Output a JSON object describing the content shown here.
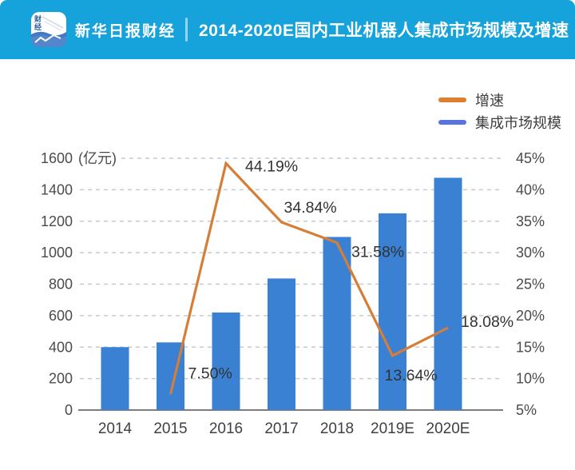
{
  "header": {
    "brand": "新华日报财经",
    "title": "2014-2020E国内工业机器人集成市场规模及增速",
    "bg_color": "#16A3DB",
    "logo_char_top": "财",
    "logo_char_bottom": "经"
  },
  "legend": {
    "items": [
      {
        "label": "增速",
        "color": "#DD7E2E",
        "marker": "line"
      },
      {
        "label": "集成市场规模",
        "color": "#5B74DB",
        "marker": "line"
      }
    ]
  },
  "chart_data": {
    "type": "bar+line",
    "title": "2014-2020E国内工业机器人集成市场规模及增速",
    "categories": [
      "2014",
      "2015",
      "2016",
      "2017",
      "2018",
      "2019E",
      "2020E"
    ],
    "series": [
      {
        "name": "集成市场规模",
        "type": "bar",
        "axis": "left",
        "unit": "亿元",
        "color": "#3A81D4",
        "values": [
          400,
          430,
          620,
          836,
          1100,
          1250,
          1476
        ],
        "estimated_from_gridlines": true
      },
      {
        "name": "增速",
        "type": "line",
        "axis": "right",
        "unit": "%",
        "color": "#D47E38",
        "values": [
          null,
          7.5,
          44.19,
          34.84,
          31.58,
          13.64,
          18.08
        ],
        "point_labels": [
          "",
          "7.50%",
          "44.19%",
          "34.84%",
          "31.58%",
          "13.64%",
          "18.08%"
        ]
      }
    ],
    "left_axis": {
      "unit_label": "(亿元)",
      "min": 0,
      "max": 1600,
      "ticks": [
        0,
        200,
        400,
        600,
        800,
        1000,
        1200,
        1400,
        1600
      ]
    },
    "right_axis": {
      "suffix": "%",
      "min": 5,
      "max": 45,
      "ticks": [
        5,
        10,
        15,
        20,
        25,
        30,
        35,
        40,
        45
      ]
    },
    "gridlines": "horizontal dashed",
    "legend_position": "top-right",
    "note": "only growth-rate point labels are printed on the chart; bar values read from gridlines"
  }
}
